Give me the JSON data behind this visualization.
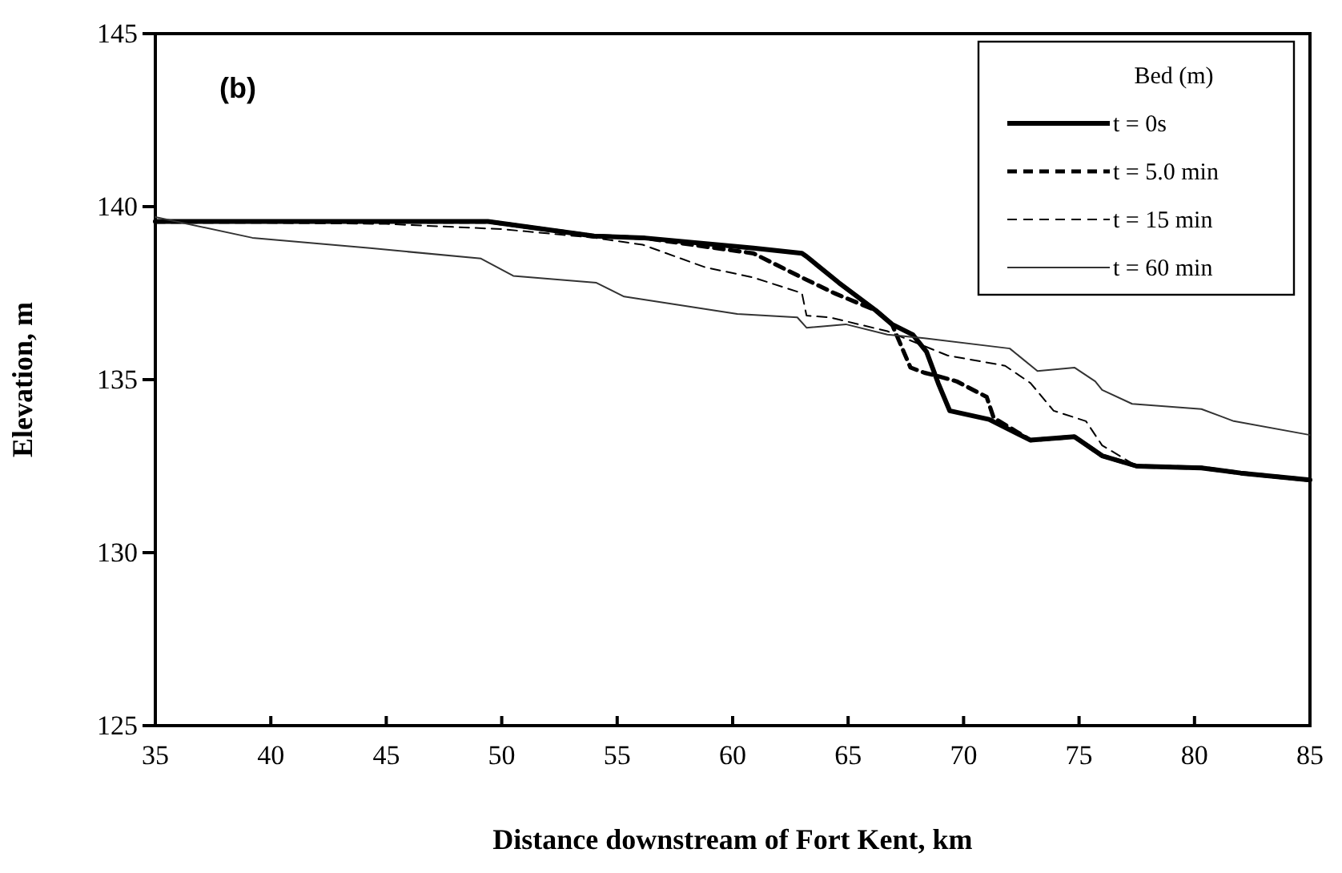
{
  "chart_data": {
    "type": "line",
    "xlabel": "Distance downstream of Fort Kent, km",
    "ylabel": "Elevation, m",
    "legend_title": "Bed (m)",
    "annotations": [
      "(b)"
    ],
    "xlim": [
      35,
      85
    ],
    "xticks": [
      35,
      40,
      45,
      50,
      55,
      60,
      65,
      70,
      75,
      80,
      85
    ],
    "ylim": [
      125,
      145
    ],
    "yticks": [
      125,
      130,
      135,
      140,
      145
    ],
    "grid": false,
    "legend": "top right",
    "marker": "none",
    "series": [
      {
        "name": "t = 0s",
        "color": "#000000",
        "line_style": "solid",
        "x": [
          35,
          49.4,
          54,
          56.1,
          60.9,
          63,
          63.2,
          64.6,
          66.2,
          66.9,
          67.8,
          68.4,
          68.9,
          69.4,
          71.1,
          72.9,
          74.8,
          76,
          77.5,
          80.3,
          82,
          85
        ],
        "values": [
          139.57,
          139.57,
          139.15,
          139.1,
          138.8,
          138.65,
          138.56,
          137.8,
          137.0,
          136.6,
          136.3,
          135.8,
          134.9,
          134.1,
          133.85,
          133.25,
          133.35,
          132.8,
          132.5,
          132.45,
          132.3,
          132.1
        ]
      },
      {
        "name": "t = 5.0 min",
        "color": "#000000",
        "line_style": "dashed",
        "x": [
          35,
          49.4,
          54,
          56.1,
          60.9,
          63,
          64.4,
          66.2,
          66.9,
          67.7,
          68.3,
          68.9,
          69.7,
          71,
          71.3,
          72.9,
          74.8,
          76,
          77.5,
          80.3,
          82,
          85
        ],
        "values": [
          139.57,
          139.57,
          139.15,
          139.1,
          138.65,
          137.95,
          137.5,
          137.0,
          136.6,
          135.35,
          135.2,
          135.1,
          134.95,
          134.5,
          133.9,
          133.25,
          133.35,
          132.8,
          132.5,
          132.45,
          132.3,
          132.1
        ]
      },
      {
        "name": "t = 15 min",
        "color": "#000000",
        "line_style": "dashed",
        "x": [
          35,
          45,
          50,
          54,
          56.1,
          58.8,
          60.9,
          63,
          63.2,
          64.2,
          66.7,
          69.3,
          71.8,
          72.9,
          73.9,
          75.3,
          76,
          77.5,
          80.3,
          82,
          85
        ],
        "values": [
          139.57,
          139.5,
          139.35,
          139.1,
          138.9,
          138.25,
          137.95,
          137.5,
          136.85,
          136.8,
          136.4,
          135.7,
          135.4,
          134.9,
          134.1,
          133.8,
          133.1,
          132.5,
          132.45,
          132.3,
          132.1
        ]
      },
      {
        "name": "t = 60 min",
        "color": "#333333",
        "line_style": "solid",
        "x": [
          35,
          39.2,
          44.3,
          49.1,
          50.5,
          54.1,
          55.3,
          60.2,
          62.8,
          63.2,
          64.9,
          66.7,
          68.3,
          72,
          73.2,
          74.8,
          75.7,
          76,
          77.3,
          80.3,
          81.7,
          85
        ],
        "values": [
          139.7,
          139.1,
          138.8,
          138.5,
          138.0,
          137.8,
          137.4,
          136.9,
          136.8,
          136.5,
          136.6,
          136.3,
          136.2,
          135.9,
          135.25,
          135.35,
          134.95,
          134.7,
          134.3,
          134.15,
          133.8,
          133.4
        ]
      }
    ]
  }
}
